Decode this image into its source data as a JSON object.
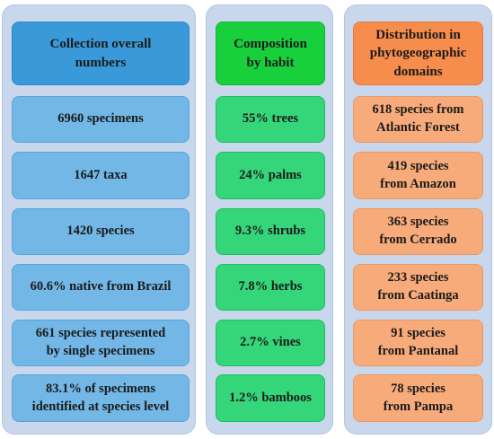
{
  "columns": [
    {
      "header": "Collection overall\nnumbers",
      "items": [
        "6960 specimens",
        "1647 taxa",
        "1420 species",
        "60.6% native from Brazil",
        "661 species represented\nby single specimens",
        "83.1% of specimens\nidentified at species level"
      ]
    },
    {
      "header": "Composition\nby habit",
      "items": [
        "55% trees",
        "24% palms",
        "9.3% shrubs",
        "7.8% herbs",
        "2.7% vines",
        "1.2% bamboos"
      ]
    },
    {
      "header": "Distribution in\nphytogeographic\ndomains",
      "items": [
        "618 species from\nAtlantic Forest",
        "419 species\nfrom Amazon",
        "363 species\nfrom Cerrado",
        "233 species\nfrom Caatinga",
        "91 species\nfrom Pantanal",
        "78 species\nfrom Pampa"
      ]
    }
  ],
  "colors": {
    "panel_background": "#c9d7ec",
    "collection_header": "#3a9ad9",
    "collection_item": "#72b7e6",
    "habit_header": "#18cf3c",
    "habit_item": "#35d57a",
    "domains_header": "#f78d4d",
    "domains_item": "#f8ab7a"
  }
}
